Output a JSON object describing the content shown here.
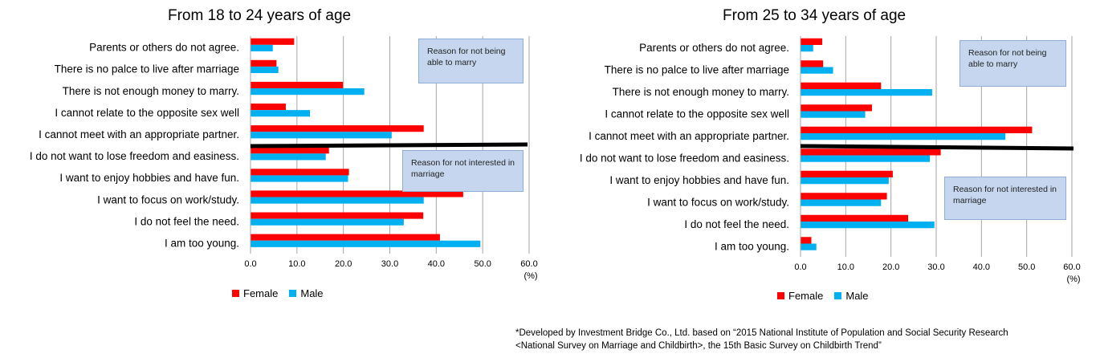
{
  "chart_data": [
    {
      "type": "bar",
      "orientation": "horizontal",
      "title": "From 18 to 24 years of age",
      "categories": [
        "Parents or others do not agree.",
        "There is no palce to live after marriage",
        "There is not enough money to marry.",
        "I cannot relate to the opposite sex well",
        "I cannot meet with an appropriate partner.",
        "I do not want to lose freedom and easiness.",
        "I want to enjoy hobbies and have fun.",
        "I want to focus on work/study.",
        "I do not feel the need.",
        "I am too young."
      ],
      "series": [
        {
          "name": "Female",
          "color": "#ff0000",
          "values": [
            9.4,
            5.6,
            19.9,
            7.6,
            37.3,
            16.9,
            21.2,
            45.8,
            37.2,
            40.8
          ]
        },
        {
          "name": "Male",
          "color": "#00b0f0",
          "values": [
            4.8,
            6.0,
            24.5,
            12.8,
            30.4,
            16.2,
            21.0,
            37.3,
            33.0,
            49.5
          ]
        }
      ],
      "xlim": [
        0,
        60
      ],
      "x_ticks": [
        "0.0",
        "10.0",
        "20.0",
        "30.0",
        "40.0",
        "50.0",
        "60.0"
      ],
      "unit_label": "(%)",
      "grid": true,
      "legend_position": "bottom-left",
      "annotations": [
        "Reason for not being able to marry",
        "Reason for not interested in marriage"
      ]
    },
    {
      "type": "bar",
      "orientation": "horizontal",
      "title": "From 25 to 34 years of age",
      "categories": [
        "Parents or others do not agree.",
        "There is no palce to live after marriage",
        "There is not enough money to marry.",
        "I cannot relate to the opposite sex well",
        "I cannot meet with an appropriate partner.",
        "I do not want to lose freedom and easiness.",
        "I want to enjoy hobbies and have fun.",
        "I want to focus on work/study.",
        "I do not feel the need.",
        "I am too young."
      ],
      "series": [
        {
          "name": "Female",
          "color": "#ff0000",
          "values": [
            4.8,
            5.0,
            17.8,
            15.8,
            51.2,
            31.0,
            20.4,
            19.1,
            23.8,
            2.4
          ]
        },
        {
          "name": "Male",
          "color": "#00b0f0",
          "values": [
            2.8,
            7.2,
            29.1,
            14.3,
            45.3,
            28.6,
            19.5,
            17.8,
            29.6,
            3.5
          ]
        }
      ],
      "xlim": [
        0,
        60
      ],
      "x_ticks": [
        "0.0",
        "10.0",
        "20.0",
        "30.0",
        "40.0",
        "50.0",
        "60.0"
      ],
      "unit_label": "(%)",
      "grid": true,
      "legend_position": "bottom-left",
      "annotations": [
        "Reason for not being able to marry",
        "Reason for not interested in marriage"
      ]
    }
  ],
  "legend": {
    "female": "Female",
    "male": "Male"
  },
  "source_note": {
    "line1": "*Developed by Investment Bridge Co., Ltd. based on “2015 National Institute of Population and Social Security Research",
    "line2": "<National Survey on Marriage and Childbirth>, the 15th Basic Survey on Childbirth Trend”"
  }
}
